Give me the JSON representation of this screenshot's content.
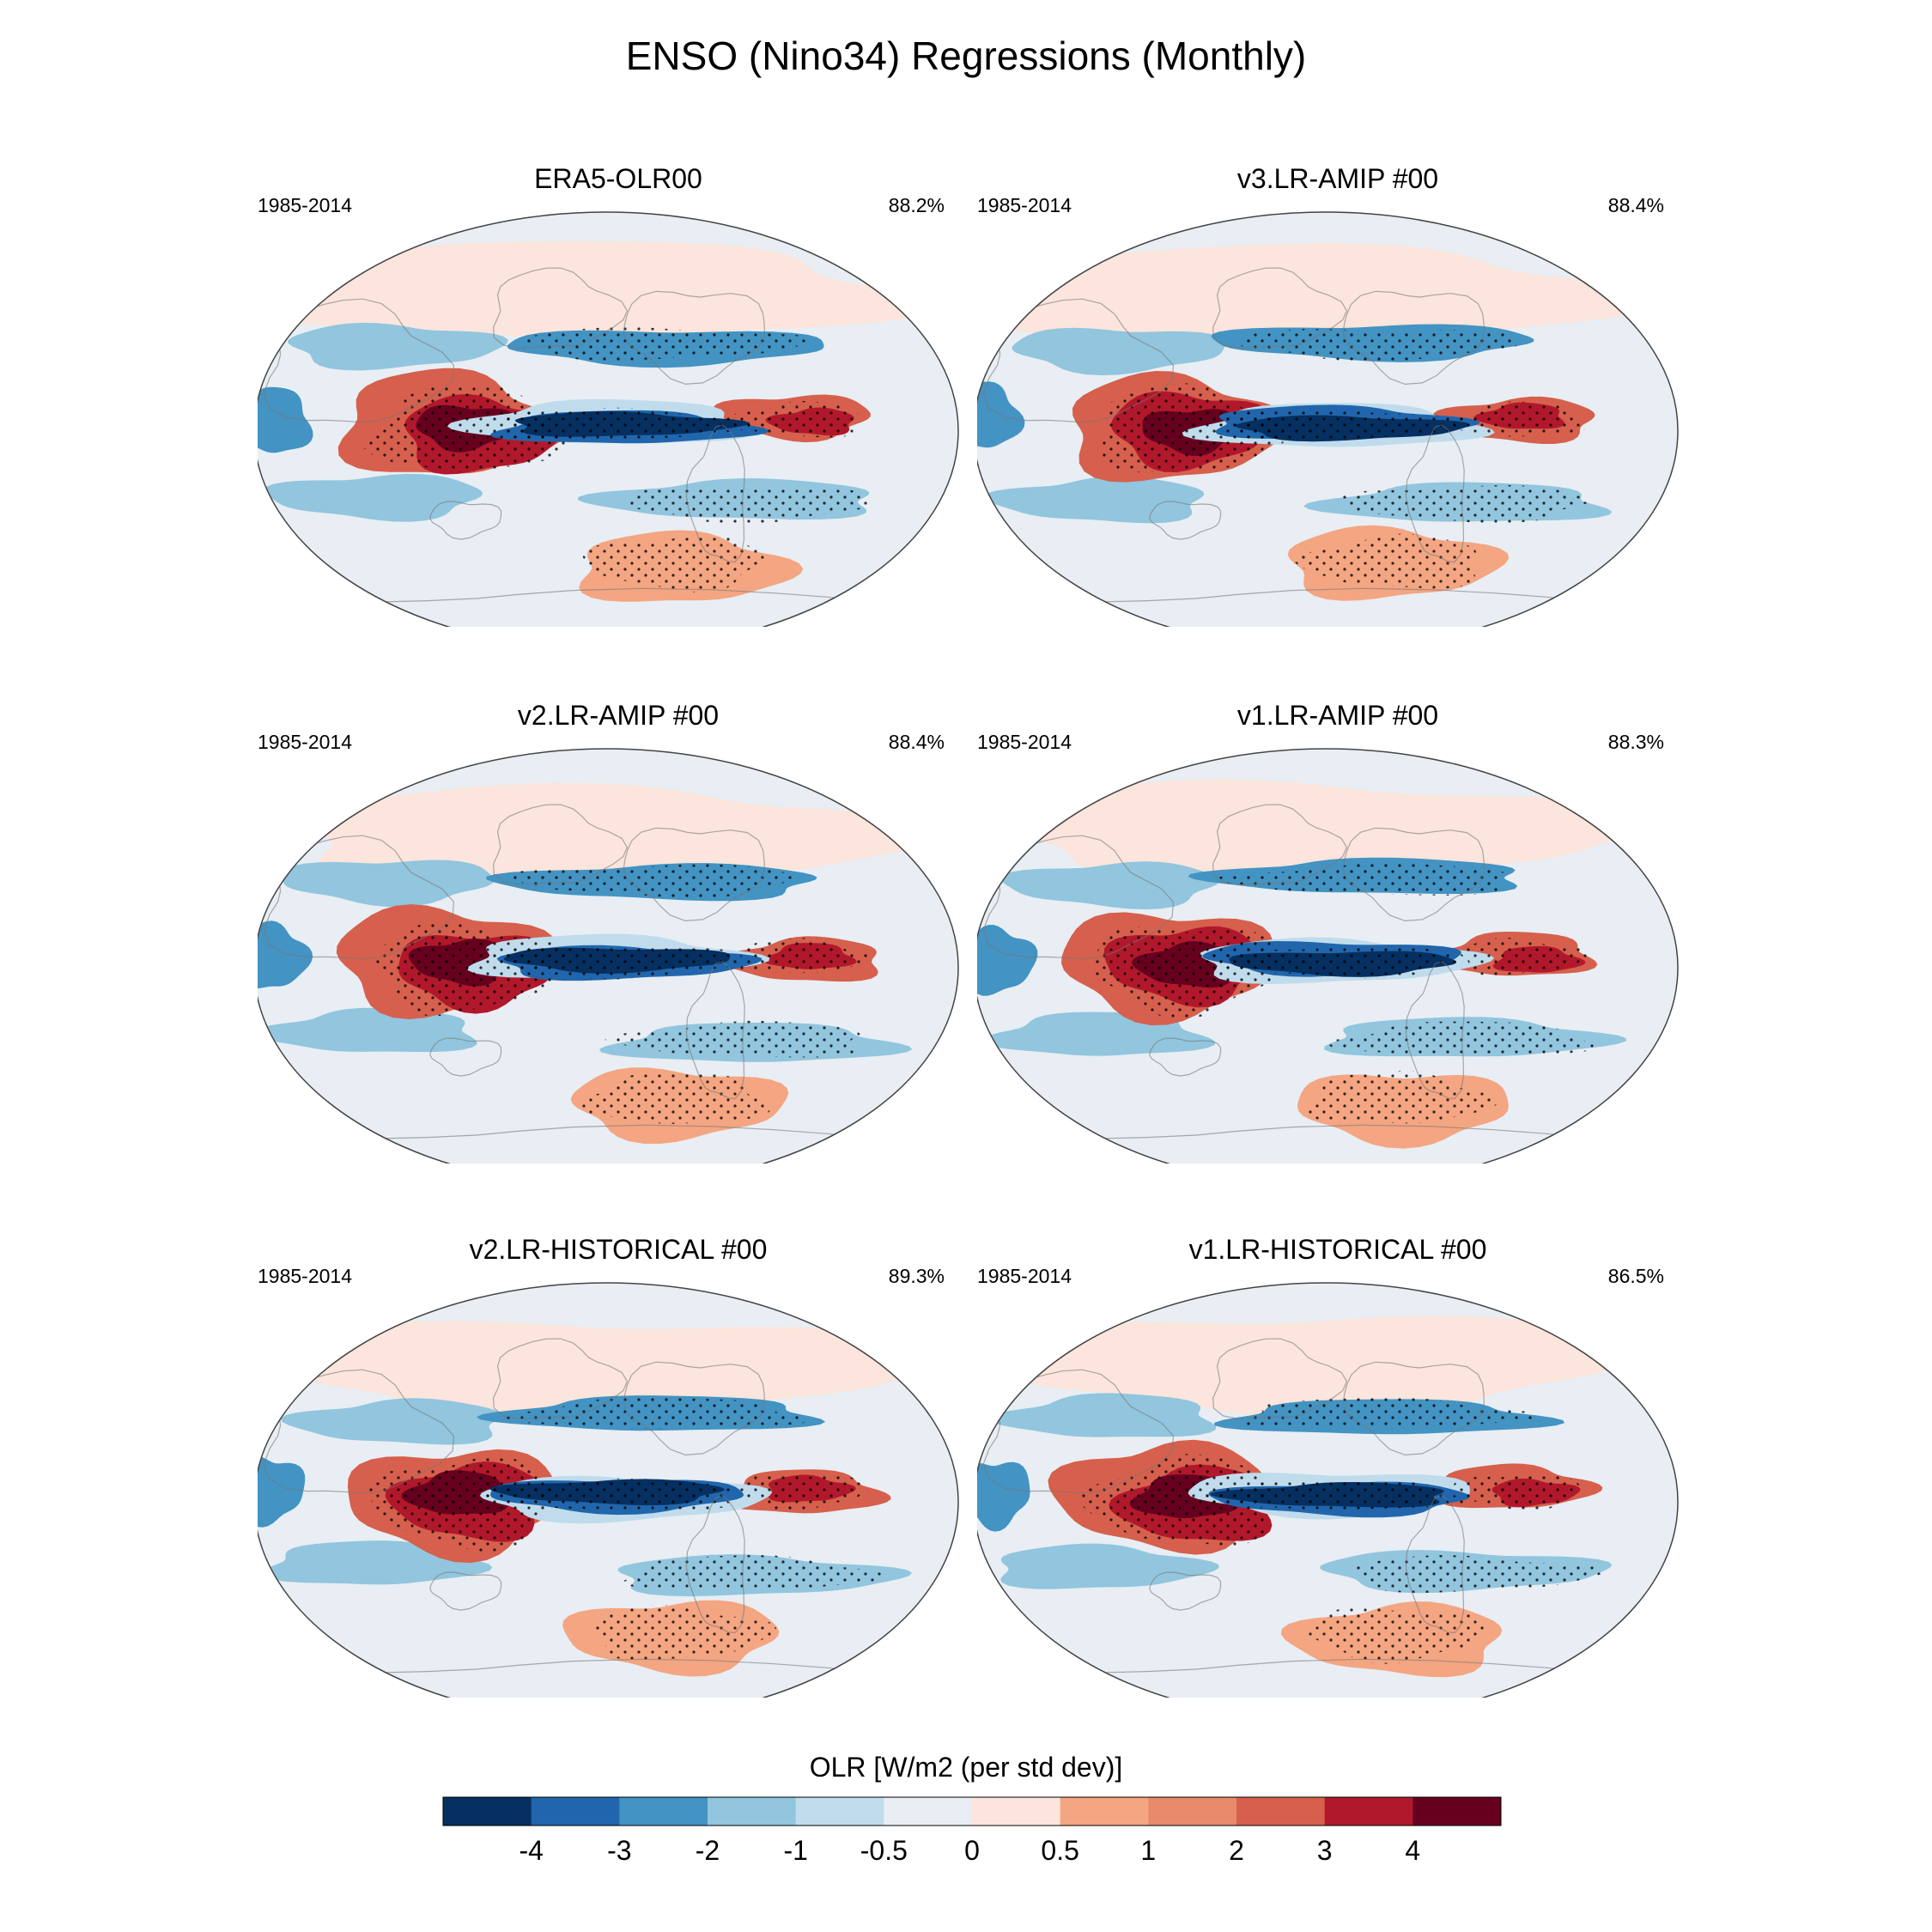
{
  "title": "ENSO (Nino34) Regressions (Monthly)",
  "chart_data": {
    "type": "heatmap",
    "projection": "Robinson (global)",
    "variable": "OLR",
    "colorbar_label": "OLR [W/m2 (per std dev)]",
    "levels": [
      -4,
      -3,
      -2,
      -1,
      -0.5,
      0,
      0.5,
      1,
      2,
      3,
      4
    ],
    "tick_labels": [
      "-4",
      "-3",
      "-2",
      "-1",
      "-0.5",
      "0",
      "0.5",
      "1",
      "2",
      "3",
      "4"
    ],
    "colors": [
      "#053061",
      "#2166ac",
      "#4393c3",
      "#92c5de",
      "#c0dcec",
      "#e8eef3",
      "#fbe5dc",
      "#f4a582",
      "#e88a6b",
      "#d6604d",
      "#b2182b",
      "#67001f"
    ],
    "panels": [
      {
        "title": "ERA5-OLR00",
        "years": "1985-2014",
        "percent": "88.2%"
      },
      {
        "title": "v3.LR-AMIP  #00",
        "years": "1985-2014",
        "percent": "88.4%"
      },
      {
        "title": "v2.LR-AMIP  #00",
        "years": "1985-2014",
        "percent": "88.4%"
      },
      {
        "title": "v1.LR-AMIP  #00",
        "years": "1985-2014",
        "percent": "88.3%"
      },
      {
        "title": "v2.LR-HISTORICAL  #00",
        "years": "1985-2014",
        "percent": "89.3%"
      },
      {
        "title": "v1.LR-HISTORICAL  #00",
        "years": "1985-2014",
        "percent": "86.5%"
      }
    ]
  }
}
